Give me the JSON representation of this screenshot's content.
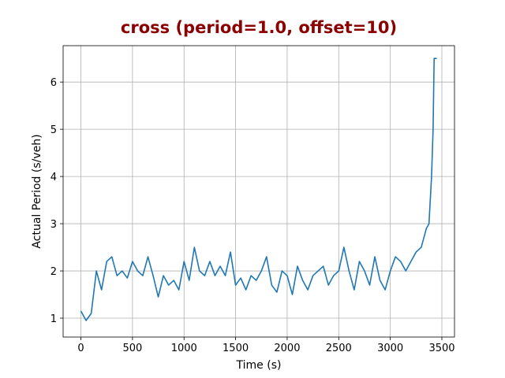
{
  "chart_data": {
    "type": "line",
    "title": "cross (period=1.0, offset=10)",
    "title_color": "#8b0000",
    "x_label": "Time (s)",
    "y_label": "Actual Period (s/veh)",
    "x": [
      0,
      50,
      100,
      150,
      200,
      250,
      300,
      350,
      400,
      450,
      500,
      550,
      600,
      650,
      700,
      750,
      800,
      850,
      900,
      950,
      1000,
      1050,
      1100,
      1150,
      1200,
      1250,
      1300,
      1350,
      1400,
      1450,
      1500,
      1550,
      1600,
      1650,
      1700,
      1750,
      1800,
      1850,
      1900,
      1950,
      2000,
      2050,
      2100,
      2150,
      2200,
      2250,
      2300,
      2350,
      2400,
      2450,
      2500,
      2550,
      2600,
      2650,
      2700,
      2750,
      2800,
      2850,
      2900,
      2950,
      3000,
      3050,
      3100,
      3150,
      3200,
      3250,
      3300,
      3350,
      3375,
      3400,
      3415,
      3425,
      3450
    ],
    "series": [
      {
        "name": "Actual Period",
        "color": "#1f77b4",
        "values": [
          1.15,
          0.95,
          1.1,
          2.0,
          1.6,
          2.2,
          2.3,
          1.9,
          2.0,
          1.85,
          2.2,
          2.0,
          1.9,
          2.3,
          1.9,
          1.45,
          1.9,
          1.7,
          1.8,
          1.6,
          2.2,
          1.8,
          2.5,
          2.0,
          1.9,
          2.2,
          1.9,
          2.1,
          1.9,
          2.4,
          1.7,
          1.85,
          1.6,
          1.9,
          1.8,
          2.0,
          2.3,
          1.7,
          1.55,
          2.0,
          1.9,
          1.5,
          2.1,
          1.8,
          1.6,
          1.9,
          2.0,
          2.1,
          1.7,
          1.9,
          2.0,
          2.5,
          2.0,
          1.6,
          2.2,
          2.0,
          1.7,
          2.3,
          1.8,
          1.6,
          2.0,
          2.3,
          2.2,
          2.0,
          2.2,
          2.4,
          2.5,
          2.9,
          3.0,
          4.0,
          5.0,
          6.5,
          6.5
        ]
      }
    ],
    "xlim": [
      -172.5,
      3622.5
    ],
    "xticks": [
      0,
      500,
      1000,
      1500,
      2000,
      2500,
      3000,
      3500
    ],
    "ylim": [
      0.6,
      6.77
    ],
    "yticks": [
      1,
      2,
      3,
      4,
      5,
      6
    ],
    "grid": true
  }
}
